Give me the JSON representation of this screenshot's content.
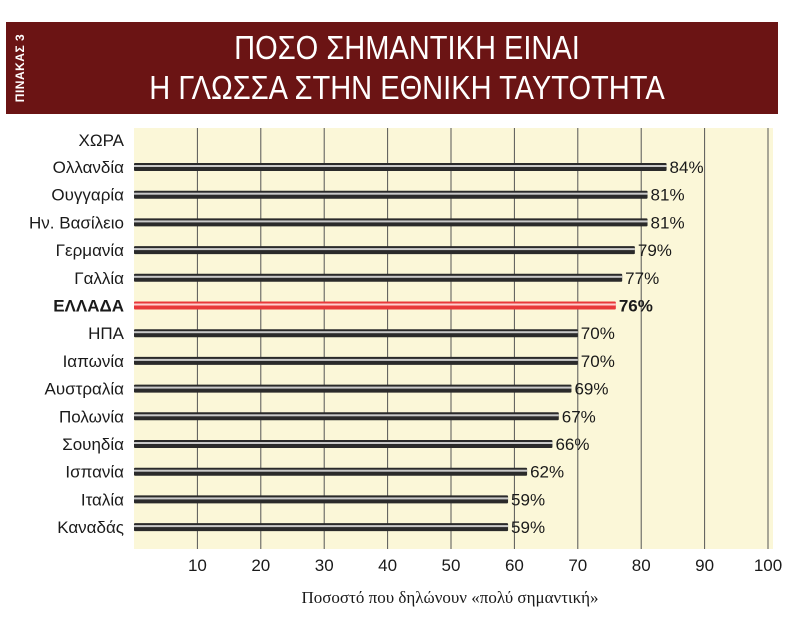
{
  "header": {
    "side_label": "ΠΙΝΑΚΑΣ 3",
    "title_line1": "ΠΟΣΟ ΣΗΜΑΝΤΙΚΗ ΕΙΝΑΙ",
    "title_line2": "Η ΓΛΩΣΣΑ ΣΤΗΝ ΕΘΝΙΚΗ ΤΑΥΤΟΤΗΤΑ"
  },
  "colors": {
    "header_bg": "#6b1414",
    "plot_bg": "#fbf7d8",
    "bar_default": "#2a2a2a",
    "bar_highlight": "#e8383a"
  },
  "chart_data": {
    "type": "bar",
    "orientation": "horizontal",
    "category_header": "ΧΩΡΑ",
    "categories": [
      "Ολλανδία",
      "Ουγγαρία",
      "Ην. Βασίλειο",
      "Γερμανία",
      "Γαλλία",
      "ΕΛΛΑΔΑ",
      "ΗΠΑ",
      "Ιαπωνία",
      "Αυστραλία",
      "Πολωνία",
      "Σουηδία",
      "Ισπανία",
      "Ιταλία",
      "Καναδάς"
    ],
    "values": [
      84,
      81,
      81,
      79,
      77,
      76,
      70,
      70,
      69,
      67,
      66,
      62,
      59,
      59
    ],
    "value_labels": [
      "84%",
      "81%",
      "81%",
      "79%",
      "77%",
      "76%",
      "70%",
      "70%",
      "69%",
      "67%",
      "66%",
      "62%",
      "59%",
      "59%"
    ],
    "highlight": "ΕΛΛΑΔΑ",
    "xlabel": "Ποσοστό που δηλώνουν «πολύ σημαντική»",
    "xlim": [
      0,
      100
    ],
    "xticks": [
      "10",
      "20",
      "30",
      "40",
      "50",
      "60",
      "70",
      "80",
      "90",
      "100"
    ],
    "grid": true
  }
}
